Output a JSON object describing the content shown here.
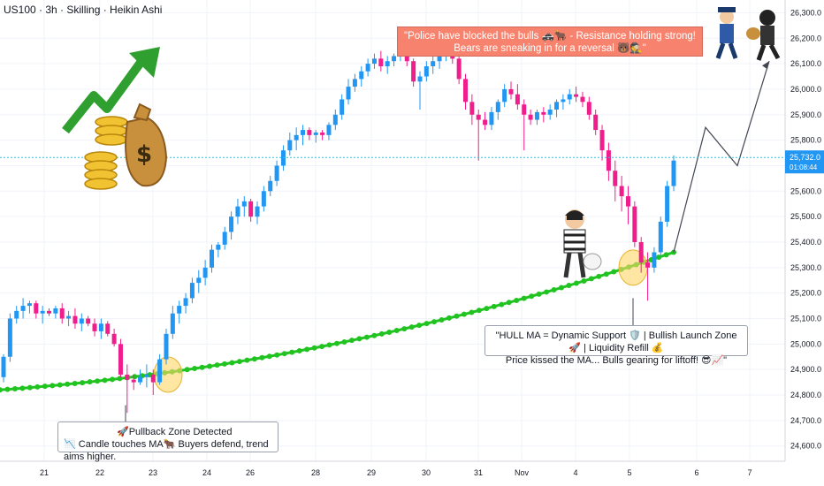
{
  "header": {
    "symbol_line": "US100 · 3h · Skilling · Heikin Ashi"
  },
  "annotations": {
    "top": {
      "line1": "\"Police have blocked the bulls 🚓🐂 - Resistance holding strong!",
      "line2": "Bears are sneaking in for a reversal 🐻🕵️\""
    },
    "left": {
      "line1": "🚀Pullback Zone Detected",
      "line2": "📉 Candle touches MA🐂 Buyers defend, trend aims higher."
    },
    "right": {
      "line1": "\"HULL MA = Dynamic Support 🛡️ | Bullish Launch Zone 🚀 | Liquidity Refill 💰",
      "line2": "Price kissed the MA... Bulls gearing for liftoff! 😎📈\""
    }
  },
  "chart_data": {
    "type": "candlestick",
    "x_ticks": [
      "21",
      "22",
      "23",
      "24",
      "26",
      "28",
      "29",
      "30",
      "31",
      "Nov",
      "4",
      "5",
      "6",
      "7"
    ],
    "y_ticks": [
      "26,300.0",
      "26,200.0",
      "26,100.0",
      "26,000.0",
      "25,900.0",
      "25,800.0",
      "25,700.0",
      "25,600.0",
      "25,500.0",
      "25,400.0",
      "25,300.0",
      "25,200.0",
      "25,100.0",
      "25,000.0",
      "24,900.0",
      "24,800.0",
      "24,700.0",
      "24,600.0"
    ],
    "ylim": [
      24540,
      26350
    ],
    "current_price": {
      "label": "25,732.0",
      "countdown": "01:08:44",
      "value": 25732
    },
    "candles": [
      [
        24870,
        24960,
        24850,
        24950
      ],
      [
        24950,
        25120,
        24930,
        25100
      ],
      [
        25100,
        25150,
        25080,
        25130
      ],
      [
        25130,
        25180,
        25100,
        25150
      ],
      [
        25150,
        25170,
        25120,
        25160
      ],
      [
        25160,
        25170,
        25100,
        25120
      ],
      [
        25120,
        25150,
        25080,
        25130
      ],
      [
        25130,
        25140,
        25110,
        25120
      ],
      [
        25120,
        25150,
        25100,
        25140
      ],
      [
        25140,
        25160,
        25080,
        25100
      ],
      [
        25100,
        25130,
        25070,
        25110
      ],
      [
        25110,
        25140,
        25060,
        25080
      ],
      [
        25080,
        25120,
        25050,
        25100
      ],
      [
        25100,
        25110,
        25070,
        25080
      ],
      [
        25080,
        25100,
        25030,
        25050
      ],
      [
        25050,
        25100,
        25020,
        25080
      ],
      [
        25080,
        25090,
        25030,
        25040
      ],
      [
        25040,
        25060,
        24990,
        25000
      ],
      [
        25000,
        25020,
        24870,
        24880
      ],
      [
        24880,
        24920,
        24730,
        24860
      ],
      [
        24860,
        24880,
        24820,
        24850
      ],
      [
        24850,
        24900,
        24840,
        24870
      ],
      [
        24870,
        24920,
        24830,
        24880
      ],
      [
        24880,
        24900,
        24800,
        24850
      ],
      [
        24850,
        24960,
        24840,
        24940
      ],
      [
        24940,
        25060,
        24920,
        25040
      ],
      [
        25040,
        25150,
        25020,
        25120
      ],
      [
        25120,
        25170,
        25080,
        25150
      ],
      [
        25150,
        25200,
        25120,
        25180
      ],
      [
        25180,
        25260,
        25160,
        25240
      ],
      [
        25240,
        25290,
        25200,
        25260
      ],
      [
        25260,
        25330,
        25230,
        25300
      ],
      [
        25300,
        25390,
        25280,
        25370
      ],
      [
        25370,
        25400,
        25340,
        25390
      ],
      [
        25390,
        25460,
        25370,
        25440
      ],
      [
        25440,
        25520,
        25410,
        25500
      ],
      [
        25500,
        25570,
        25470,
        25540
      ],
      [
        25540,
        25580,
        25500,
        25560
      ],
      [
        25560,
        25570,
        25480,
        25500
      ],
      [
        25500,
        25560,
        25470,
        25540
      ],
      [
        25540,
        25620,
        25520,
        25600
      ],
      [
        25600,
        25660,
        25580,
        25640
      ],
      [
        25640,
        25720,
        25620,
        25700
      ],
      [
        25700,
        25780,
        25680,
        25760
      ],
      [
        25760,
        25830,
        25740,
        25800
      ],
      [
        25800,
        25850,
        25760,
        25820
      ],
      [
        25820,
        25860,
        25780,
        25840
      ],
      [
        25840,
        25850,
        25800,
        25820
      ],
      [
        25820,
        25840,
        25790,
        25830
      ],
      [
        25830,
        25840,
        25800,
        25820
      ],
      [
        25820,
        25870,
        25800,
        25860
      ],
      [
        25860,
        25920,
        25840,
        25900
      ],
      [
        25900,
        25980,
        25880,
        25960
      ],
      [
        25960,
        26040,
        25940,
        26010
      ],
      [
        26010,
        26060,
        25990,
        26040
      ],
      [
        26040,
        26090,
        26010,
        26070
      ],
      [
        26070,
        26120,
        26050,
        26100
      ],
      [
        26100,
        26140,
        26080,
        26120
      ],
      [
        26120,
        26150,
        26070,
        26090
      ],
      [
        26090,
        26130,
        26060,
        26110
      ],
      [
        26110,
        26140,
        26090,
        26130
      ],
      [
        26130,
        26160,
        26110,
        26150
      ],
      [
        26150,
        26160,
        26090,
        26110
      ],
      [
        26110,
        26120,
        26010,
        26030
      ],
      [
        26030,
        26070,
        25920,
        26050
      ],
      [
        26050,
        26110,
        26030,
        26090
      ],
      [
        26090,
        26130,
        26060,
        26110
      ],
      [
        26110,
        26170,
        26080,
        26140
      ],
      [
        26140,
        26200,
        26110,
        26180
      ],
      [
        26180,
        26190,
        26100,
        26120
      ],
      [
        26120,
        26140,
        26020,
        26040
      ],
      [
        26040,
        26060,
        25920,
        25950
      ],
      [
        25950,
        25980,
        25860,
        25900
      ],
      [
        25900,
        25920,
        25720,
        25880
      ],
      [
        25880,
        25910,
        25840,
        25860
      ],
      [
        25860,
        25930,
        25840,
        25910
      ],
      [
        25910,
        25960,
        25880,
        25950
      ],
      [
        25950,
        26020,
        25930,
        26000
      ],
      [
        26000,
        26030,
        25960,
        25980
      ],
      [
        25980,
        26020,
        25920,
        25940
      ],
      [
        25940,
        25960,
        25760,
        25900
      ],
      [
        25900,
        25920,
        25860,
        25880
      ],
      [
        25880,
        25920,
        25860,
        25910
      ],
      [
        25910,
        25930,
        25870,
        25900
      ],
      [
        25900,
        25940,
        25880,
        25920
      ],
      [
        25920,
        25960,
        25890,
        25950
      ],
      [
        25950,
        25980,
        25920,
        25960
      ],
      [
        25960,
        26000,
        25940,
        25980
      ],
      [
        25980,
        26010,
        25950,
        25970
      ],
      [
        25970,
        25990,
        25930,
        25950
      ],
      [
        25950,
        25970,
        25880,
        25900
      ],
      [
        25900,
        25920,
        25820,
        25840
      ],
      [
        25840,
        25860,
        25720,
        25760
      ],
      [
        25760,
        25790,
        25640,
        25680
      ],
      [
        25680,
        25720,
        25560,
        25620
      ],
      [
        25620,
        25660,
        25520,
        25580
      ],
      [
        25580,
        25620,
        25470,
        25540
      ],
      [
        25540,
        25560,
        25380,
        25400
      ],
      [
        25400,
        25420,
        25280,
        25320
      ],
      [
        25320,
        25360,
        25170,
        25300
      ],
      [
        25300,
        25380,
        25280,
        25360
      ],
      [
        25360,
        25500,
        25340,
        25480
      ],
      [
        25480,
        25640,
        25460,
        25620
      ],
      [
        25620,
        25740,
        25600,
        25720
      ]
    ],
    "hull_ma": {
      "start": 24820,
      "end": 25360,
      "color": "#21c321"
    },
    "projection": [
      [
        25360,
        0
      ],
      [
        25850,
        1
      ],
      [
        25700,
        2
      ],
      [
        26110,
        3
      ]
    ],
    "colors": {
      "bull": "#2196f3",
      "bear": "#f01e8c",
      "price_line": "#26c6da"
    }
  }
}
